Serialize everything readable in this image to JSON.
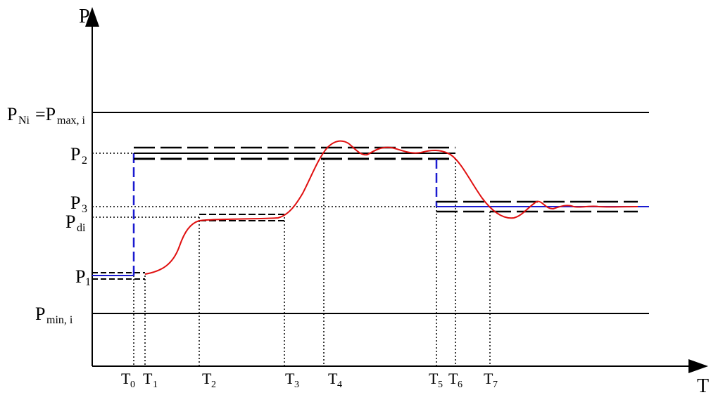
{
  "axes": {
    "y_label": "P",
    "x_label": "T"
  },
  "y_levels": [
    {
      "id": "pni",
      "main": "P",
      "sub": "Ni",
      "suffix_main": "=P",
      "suffix_sub": "max, i"
    },
    {
      "id": "p2",
      "main": "P",
      "sub": "2"
    },
    {
      "id": "p3",
      "main": "P",
      "sub": "3"
    },
    {
      "id": "pdi",
      "main": "P",
      "sub": "di"
    },
    {
      "id": "p1",
      "main": "P",
      "sub": "1"
    },
    {
      "id": "pmin",
      "main": "P",
      "sub": "min, i"
    }
  ],
  "time_marks": [
    {
      "id": "t0",
      "main": "T",
      "sub": "0"
    },
    {
      "id": "t1",
      "main": "T",
      "sub": "1"
    },
    {
      "id": "t2",
      "main": "T",
      "sub": "2"
    },
    {
      "id": "t3",
      "main": "T",
      "sub": "3"
    },
    {
      "id": "t4",
      "main": "T",
      "sub": "4"
    },
    {
      "id": "t5",
      "main": "T",
      "sub": "5"
    },
    {
      "id": "t6",
      "main": "T",
      "sub": "6"
    },
    {
      "id": "t7",
      "main": "T",
      "sub": "7"
    }
  ],
  "colors": {
    "response_curve": "#e01010",
    "setpoint_line": "#1a1ad0",
    "axes": "#000000"
  }
}
